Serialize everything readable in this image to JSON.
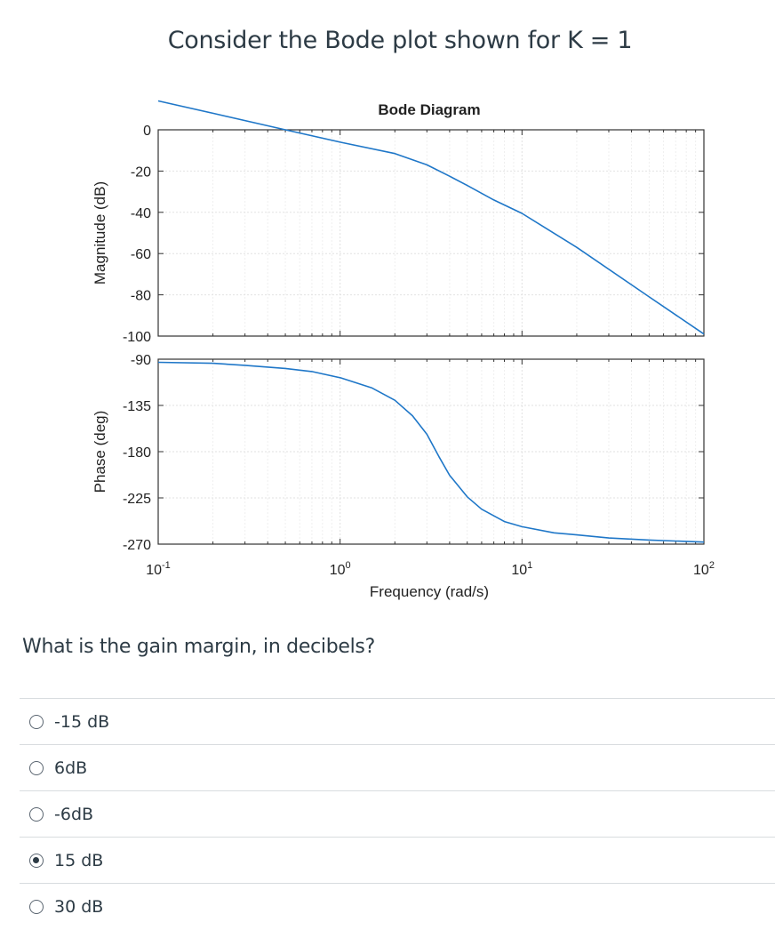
{
  "question": {
    "title": "Consider the Bode plot shown for K = 1",
    "prompt": "What is the gain margin, in decibels?"
  },
  "answers": [
    {
      "label": "-15 dB",
      "selected": false
    },
    {
      "label": "6dB",
      "selected": false
    },
    {
      "label": "-6dB",
      "selected": false
    },
    {
      "label": "15 dB",
      "selected": true
    },
    {
      "label": "30 dB",
      "selected": false
    }
  ],
  "chart_data": {
    "type": "line",
    "title": "Bode Diagram",
    "xlabel": "Frequency  (rad/s)",
    "xscale": "log",
    "xlim": [
      0.1,
      100
    ],
    "xticks": [
      {
        "value": 0.1,
        "base": "10",
        "exp": "-1"
      },
      {
        "value": 1,
        "base": "10",
        "exp": "0"
      },
      {
        "value": 10,
        "base": "10",
        "exp": "1"
      },
      {
        "value": 100,
        "base": "10",
        "exp": "2"
      }
    ],
    "grid": true,
    "line_color": "#1f77c8",
    "panels": [
      {
        "name": "magnitude",
        "ylabel": "Magnitude (dB)",
        "ylim": [
          -100,
          0
        ],
        "yticks": [
          0,
          -20,
          -40,
          -60,
          -80,
          -100
        ],
        "series": [
          {
            "x": [
              0.1,
              0.2,
              0.5,
              1,
              2,
              3,
              4,
              5,
              7,
              10,
              20,
              50,
              100
            ],
            "y": [
              14,
              8,
              0,
              -6,
              -11.5,
              -17,
              -22.5,
              -27,
              -34,
              -40.5,
              -57,
              -81,
              -99
            ]
          }
        ]
      },
      {
        "name": "phase",
        "ylabel": "Phase (deg)",
        "ylim": [
          -270,
          -90
        ],
        "yticks": [
          -90,
          -135,
          -180,
          -225,
          -270
        ],
        "series": [
          {
            "x": [
              0.1,
              0.2,
              0.3,
              0.5,
              0.7,
              1,
              1.5,
              2,
              2.5,
              3,
              3.5,
              4,
              5,
              6,
              8,
              10,
              15,
              20,
              30,
              50,
              100
            ],
            "y": [
              -93,
              -94,
              -96,
              -99,
              -102,
              -108,
              -118,
              -130,
              -145,
              -163,
              -185,
              -203,
              -224,
              -236,
              -248,
              -253,
              -259,
              -261,
              -264,
              -266,
              -268
            ]
          }
        ]
      }
    ]
  }
}
